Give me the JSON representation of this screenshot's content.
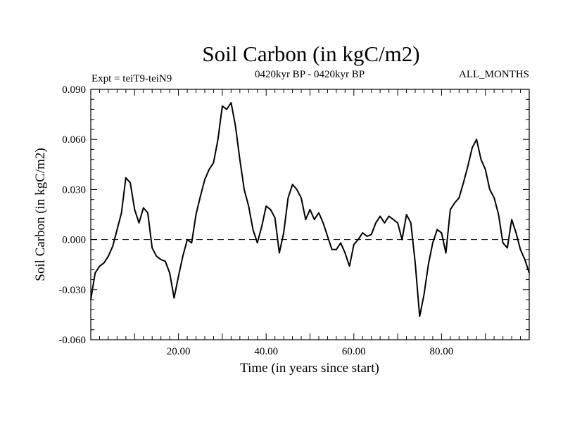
{
  "chart_data": {
    "type": "line",
    "title": "Soil Carbon (in kgC/m2)",
    "subtitle": "0420kyr BP - 0420kyr BP",
    "experiment_label": "Expt = teiT9-teiN9",
    "period_label": "ALL_MONTHS",
    "xlabel": "Time (in years since start)",
    "ylabel": "Soil Carbon (in kgC/m2)",
    "xlim": [
      0,
      100
    ],
    "ylim": [
      -0.06,
      0.09
    ],
    "x_tick_labels": [
      {
        "value": 20,
        "label": "20.00"
      },
      {
        "value": 40,
        "label": "40.00"
      },
      {
        "value": 60,
        "label": "60.00"
      },
      {
        "value": 80,
        "label": "80.00"
      }
    ],
    "y_tick_labels": [
      {
        "value": 0.09,
        "label": "0.090"
      },
      {
        "value": 0.06,
        "label": "0.060"
      },
      {
        "value": 0.03,
        "label": "0.030"
      },
      {
        "value": 0.0,
        "label": "0.000"
      },
      {
        "value": -0.03,
        "label": "-0.030"
      },
      {
        "value": -0.06,
        "label": "-0.060"
      }
    ],
    "zero_line": true,
    "series": [
      {
        "name": "teiT9-teiN9",
        "x": [
          0,
          1,
          2,
          3,
          4,
          5,
          6,
          7,
          8,
          9,
          10,
          11,
          12,
          13,
          14,
          15,
          16,
          17,
          18,
          19,
          20,
          21,
          22,
          23,
          24,
          25,
          26,
          27,
          28,
          29,
          30,
          31,
          32,
          33,
          34,
          35,
          36,
          37,
          38,
          39,
          40,
          41,
          42,
          43,
          44,
          45,
          46,
          47,
          48,
          49,
          50,
          51,
          52,
          53,
          54,
          55,
          56,
          57,
          58,
          59,
          60,
          61,
          62,
          63,
          64,
          65,
          66,
          67,
          68,
          69,
          70,
          71,
          72,
          73,
          74,
          75,
          76,
          77,
          78,
          79,
          80,
          81,
          82,
          83,
          84,
          85,
          86,
          87,
          88,
          89,
          90,
          91,
          92,
          93,
          94,
          95,
          96,
          97,
          98,
          99,
          100
        ],
        "values": [
          -0.036,
          -0.02,
          -0.016,
          -0.014,
          -0.01,
          -0.004,
          0.006,
          0.016,
          0.037,
          0.034,
          0.018,
          0.01,
          0.019,
          0.016,
          -0.005,
          -0.01,
          -0.012,
          -0.013,
          -0.02,
          -0.035,
          -0.022,
          -0.01,
          0.0,
          -0.002,
          0.015,
          0.026,
          0.036,
          0.042,
          0.046,
          0.06,
          0.08,
          0.078,
          0.082,
          0.068,
          0.048,
          0.03,
          0.02,
          0.006,
          -0.002,
          0.008,
          0.02,
          0.018,
          0.013,
          -0.008,
          0.004,
          0.025,
          0.033,
          0.03,
          0.025,
          0.012,
          0.018,
          0.012,
          0.016,
          0.01,
          0.002,
          -0.006,
          -0.006,
          -0.002,
          -0.008,
          -0.016,
          -0.003,
          0.0,
          0.004,
          0.002,
          0.003,
          0.01,
          0.014,
          0.01,
          0.014,
          0.012,
          0.01,
          0.0,
          0.015,
          0.01,
          -0.014,
          -0.046,
          -0.033,
          -0.015,
          -0.002,
          0.006,
          0.004,
          -0.008,
          0.018,
          0.022,
          0.025,
          0.034,
          0.044,
          0.055,
          0.06,
          0.048,
          0.042,
          0.03,
          0.025,
          0.015,
          -0.002,
          -0.005,
          0.012,
          0.004,
          -0.006,
          -0.012,
          -0.02
        ]
      }
    ]
  }
}
